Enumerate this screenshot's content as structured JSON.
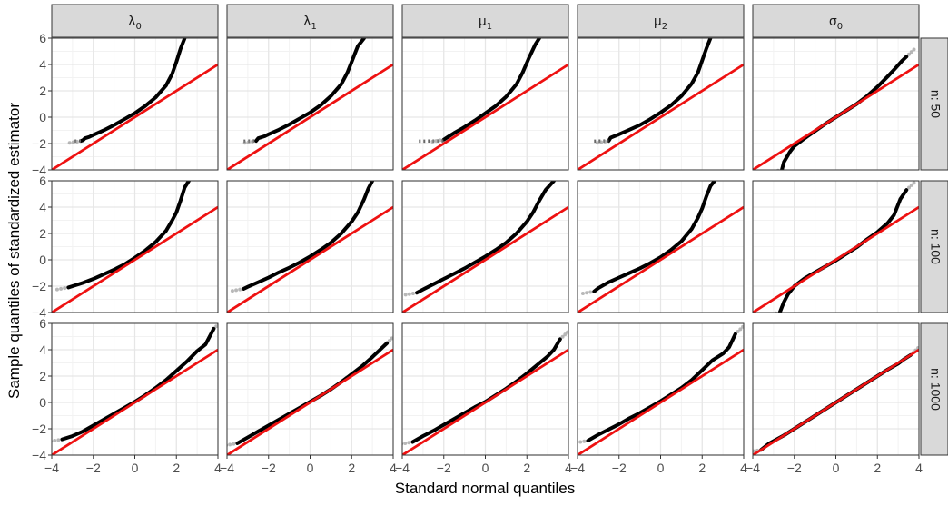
{
  "chart_data": {
    "type": "scatter",
    "layout": "facet-grid",
    "xlabel": "Standard normal quantiles",
    "ylabel": "Sample quantiles of standardized estimator",
    "xlim": [
      -4,
      4
    ],
    "ylim": [
      -4,
      6
    ],
    "x_ticks": [
      -4,
      -2,
      0,
      2,
      4
    ],
    "y_ticks": [
      -4,
      -2,
      0,
      2,
      4,
      6
    ],
    "grid": true,
    "reference_line": {
      "slope": 1,
      "intercept": 0,
      "color": "#ee1111"
    },
    "point_color": "#000000",
    "panel_background": "#ffffff",
    "strip_background": "#d9d9d9",
    "columns": [
      {
        "id": "lambda0",
        "symbol": "λ",
        "subscript": "0"
      },
      {
        "id": "lambda1",
        "symbol": "λ",
        "subscript": "1"
      },
      {
        "id": "mu1",
        "symbol": "μ",
        "subscript": "1"
      },
      {
        "id": "mu2",
        "symbol": "μ",
        "subscript": "2"
      },
      {
        "id": "sigma0",
        "symbol": "σ",
        "subscript": "0"
      }
    ],
    "rows": [
      {
        "id": "n50",
        "label": "n: 50"
      },
      {
        "id": "n100",
        "label": "n: 100"
      },
      {
        "id": "n1000",
        "label": "n: 1000"
      }
    ],
    "panels": [
      [
        {
          "points": [
            [
              -2.6,
              -1.8
            ],
            [
              -2.5,
              -1.75
            ],
            [
              -2.4,
              -1.6
            ],
            [
              -2.2,
              -1.5
            ],
            [
              -2,
              -1.35
            ],
            [
              -1.5,
              -1.0
            ],
            [
              -1,
              -0.6
            ],
            [
              -0.5,
              -0.15
            ],
            [
              0,
              0.3
            ],
            [
              0.5,
              0.85
            ],
            [
              1,
              1.5
            ],
            [
              1.5,
              2.4
            ],
            [
              1.8,
              3.3
            ],
            [
              2,
              4.2
            ],
            [
              2.2,
              5.2
            ],
            [
              2.4,
              6
            ]
          ],
          "flat": [
            [
              -2.9,
              -1.82
            ],
            [
              -2.6,
              -1.8
            ]
          ]
        },
        {
          "points": [
            [
              -2.6,
              -1.8
            ],
            [
              -2.5,
              -1.6
            ],
            [
              -2.2,
              -1.45
            ],
            [
              -2,
              -1.3
            ],
            [
              -1.5,
              -0.95
            ],
            [
              -1,
              -0.55
            ],
            [
              -0.5,
              -0.1
            ],
            [
              0,
              0.35
            ],
            [
              0.5,
              0.9
            ],
            [
              1,
              1.6
            ],
            [
              1.5,
              2.5
            ],
            [
              1.8,
              3.4
            ],
            [
              2,
              4.2
            ],
            [
              2.3,
              5.4
            ],
            [
              2.6,
              6
            ]
          ],
          "flat": [
            [
              -3.2,
              -1.82
            ],
            [
              -2.6,
              -1.8
            ]
          ]
        },
        {
          "points": [
            [
              -2.0,
              -1.7
            ],
            [
              -1.8,
              -1.5
            ],
            [
              -1.5,
              -1.2
            ],
            [
              -1,
              -0.75
            ],
            [
              -0.5,
              -0.25
            ],
            [
              0,
              0.3
            ],
            [
              0.5,
              0.85
            ],
            [
              1,
              1.55
            ],
            [
              1.5,
              2.5
            ],
            [
              1.8,
              3.4
            ],
            [
              2.1,
              4.5
            ],
            [
              2.4,
              5.5
            ],
            [
              2.6,
              6
            ]
          ],
          "flat": [
            [
              -3.2,
              -1.82
            ],
            [
              -2.0,
              -1.8
            ]
          ]
        },
        {
          "points": [
            [
              -2.5,
              -1.8
            ],
            [
              -2.4,
              -1.55
            ],
            [
              -2,
              -1.3
            ],
            [
              -1.5,
              -0.95
            ],
            [
              -1,
              -0.6
            ],
            [
              -0.5,
              -0.15
            ],
            [
              0,
              0.35
            ],
            [
              0.5,
              0.9
            ],
            [
              1,
              1.6
            ],
            [
              1.5,
              2.55
            ],
            [
              1.8,
              3.4
            ],
            [
              2,
              4.3
            ],
            [
              2.2,
              5.2
            ],
            [
              2.4,
              6
            ]
          ],
          "flat": [
            [
              -3.2,
              -1.82
            ],
            [
              -2.5,
              -1.8
            ]
          ]
        },
        {
          "points": [
            [
              -2.6,
              -4
            ],
            [
              -2.5,
              -3.4
            ],
            [
              -2.2,
              -2.6
            ],
            [
              -2,
              -2.2
            ],
            [
              -1.5,
              -1.6
            ],
            [
              -1,
              -1.05
            ],
            [
              -0.5,
              -0.5
            ],
            [
              0,
              0
            ],
            [
              0.5,
              0.5
            ],
            [
              1,
              1.0
            ],
            [
              1.5,
              1.6
            ],
            [
              2,
              2.3
            ],
            [
              2.5,
              3.1
            ],
            [
              2.8,
              3.6
            ],
            [
              3.2,
              4.3
            ],
            [
              3.4,
              4.6
            ]
          ]
        }
      ],
      [
        {
          "points": [
            [
              -3.2,
              -2.1
            ],
            [
              -3,
              -2.0
            ],
            [
              -2.5,
              -1.75
            ],
            [
              -2,
              -1.45
            ],
            [
              -1.5,
              -1.1
            ],
            [
              -1,
              -0.75
            ],
            [
              -0.5,
              -0.35
            ],
            [
              0,
              0.15
            ],
            [
              0.5,
              0.7
            ],
            [
              1,
              1.35
            ],
            [
              1.5,
              2.2
            ],
            [
              1.8,
              3.0
            ],
            [
              2,
              3.6
            ],
            [
              2.2,
              4.5
            ],
            [
              2.4,
              5.5
            ],
            [
              2.6,
              6
            ]
          ]
        },
        {
          "points": [
            [
              -3.2,
              -2.2
            ],
            [
              -3,
              -2.05
            ],
            [
              -2.5,
              -1.7
            ],
            [
              -2,
              -1.35
            ],
            [
              -1.5,
              -0.95
            ],
            [
              -1,
              -0.6
            ],
            [
              -0.5,
              -0.2
            ],
            [
              0,
              0.25
            ],
            [
              0.5,
              0.75
            ],
            [
              1,
              1.3
            ],
            [
              1.5,
              2.0
            ],
            [
              2,
              2.9
            ],
            [
              2.3,
              3.6
            ],
            [
              2.6,
              4.6
            ],
            [
              2.8,
              5.4
            ],
            [
              3.0,
              6
            ]
          ]
        },
        {
          "points": [
            [
              -3.3,
              -2.5
            ],
            [
              -3,
              -2.25
            ],
            [
              -2.5,
              -1.85
            ],
            [
              -2,
              -1.45
            ],
            [
              -1.5,
              -1.05
            ],
            [
              -1,
              -0.65
            ],
            [
              -0.5,
              -0.2
            ],
            [
              0,
              0.25
            ],
            [
              0.5,
              0.75
            ],
            [
              1,
              1.3
            ],
            [
              1.5,
              2.0
            ],
            [
              2,
              2.9
            ],
            [
              2.3,
              3.6
            ],
            [
              2.6,
              4.5
            ],
            [
              2.9,
              5.3
            ],
            [
              3.3,
              6
            ]
          ]
        },
        {
          "points": [
            [
              -3.2,
              -2.4
            ],
            [
              -3,
              -2.15
            ],
            [
              -2.5,
              -1.7
            ],
            [
              -2,
              -1.35
            ],
            [
              -1.5,
              -1.0
            ],
            [
              -1,
              -0.65
            ],
            [
              -0.5,
              -0.25
            ],
            [
              0,
              0.2
            ],
            [
              0.5,
              0.75
            ],
            [
              1,
              1.4
            ],
            [
              1.5,
              2.35
            ],
            [
              1.8,
              3.2
            ],
            [
              2,
              3.9
            ],
            [
              2.2,
              4.8
            ],
            [
              2.4,
              5.6
            ],
            [
              2.6,
              6
            ]
          ]
        },
        {
          "points": [
            [
              -2.7,
              -4
            ],
            [
              -2.5,
              -3.2
            ],
            [
              -2.3,
              -2.6
            ],
            [
              -2,
              -2.0
            ],
            [
              -1.5,
              -1.4
            ],
            [
              -1,
              -0.95
            ],
            [
              -0.5,
              -0.5
            ],
            [
              0,
              -0.05
            ],
            [
              0.5,
              0.45
            ],
            [
              1,
              0.95
            ],
            [
              1.5,
              1.55
            ],
            [
              2,
              2.1
            ],
            [
              2.5,
              2.8
            ],
            [
              2.8,
              3.4
            ],
            [
              3.1,
              4.6
            ],
            [
              3.4,
              5.3
            ]
          ]
        }
      ],
      [
        {
          "points": [
            [
              -3.5,
              -2.8
            ],
            [
              -3,
              -2.55
            ],
            [
              -2.5,
              -2.2
            ],
            [
              -2,
              -1.75
            ],
            [
              -1.5,
              -1.3
            ],
            [
              -1,
              -0.85
            ],
            [
              -0.5,
              -0.4
            ],
            [
              0,
              0.05
            ],
            [
              0.5,
              0.55
            ],
            [
              1,
              1.1
            ],
            [
              1.5,
              1.7
            ],
            [
              2,
              2.4
            ],
            [
              2.5,
              3.1
            ],
            [
              3,
              3.9
            ],
            [
              3.4,
              4.4
            ],
            [
              3.8,
              5.6
            ]
          ]
        },
        {
          "points": [
            [
              -3.5,
              -3.1
            ],
            [
              -3,
              -2.65
            ],
            [
              -2.5,
              -2.2
            ],
            [
              -2,
              -1.75
            ],
            [
              -1.5,
              -1.3
            ],
            [
              -1,
              -0.85
            ],
            [
              -0.5,
              -0.4
            ],
            [
              0,
              0.05
            ],
            [
              0.5,
              0.5
            ],
            [
              1,
              1.0
            ],
            [
              1.5,
              1.55
            ],
            [
              2,
              2.15
            ],
            [
              2.5,
              2.75
            ],
            [
              3,
              3.45
            ],
            [
              3.3,
              3.9
            ],
            [
              3.7,
              4.5
            ]
          ]
        },
        {
          "points": [
            [
              -3.5,
              -3.0
            ],
            [
              -3,
              -2.55
            ],
            [
              -2.5,
              -2.15
            ],
            [
              -2,
              -1.7
            ],
            [
              -1.5,
              -1.25
            ],
            [
              -1,
              -0.8
            ],
            [
              -0.5,
              -0.35
            ],
            [
              0,
              0.05
            ],
            [
              0.5,
              0.55
            ],
            [
              1,
              1.05
            ],
            [
              1.5,
              1.6
            ],
            [
              2,
              2.2
            ],
            [
              2.5,
              2.85
            ],
            [
              3,
              3.5
            ],
            [
              3.3,
              4.0
            ],
            [
              3.6,
              4.8
            ]
          ]
        },
        {
          "points": [
            [
              -3.5,
              -2.9
            ],
            [
              -3,
              -2.45
            ],
            [
              -2.5,
              -2.05
            ],
            [
              -2,
              -1.65
            ],
            [
              -1.5,
              -1.2
            ],
            [
              -1,
              -0.8
            ],
            [
              -0.5,
              -0.35
            ],
            [
              0,
              0.1
            ],
            [
              0.5,
              0.6
            ],
            [
              1,
              1.1
            ],
            [
              1.5,
              1.7
            ],
            [
              2,
              2.45
            ],
            [
              2.5,
              3.2
            ],
            [
              3,
              3.7
            ],
            [
              3.3,
              4.2
            ],
            [
              3.6,
              5.2
            ]
          ]
        },
        {
          "points": [
            [
              -3.6,
              -3.6
            ],
            [
              -3.2,
              -3.1
            ],
            [
              -2.5,
              -2.5
            ],
            [
              -2,
              -2.0
            ],
            [
              -1.5,
              -1.5
            ],
            [
              -1,
              -1.0
            ],
            [
              -0.5,
              -0.5
            ],
            [
              0,
              0
            ],
            [
              0.5,
              0.5
            ],
            [
              1,
              1.0
            ],
            [
              1.5,
              1.5
            ],
            [
              2,
              2.0
            ],
            [
              2.5,
              2.5
            ],
            [
              3,
              2.95
            ],
            [
              3.3,
              3.3
            ],
            [
              3.6,
              3.6
            ]
          ]
        }
      ]
    ]
  }
}
